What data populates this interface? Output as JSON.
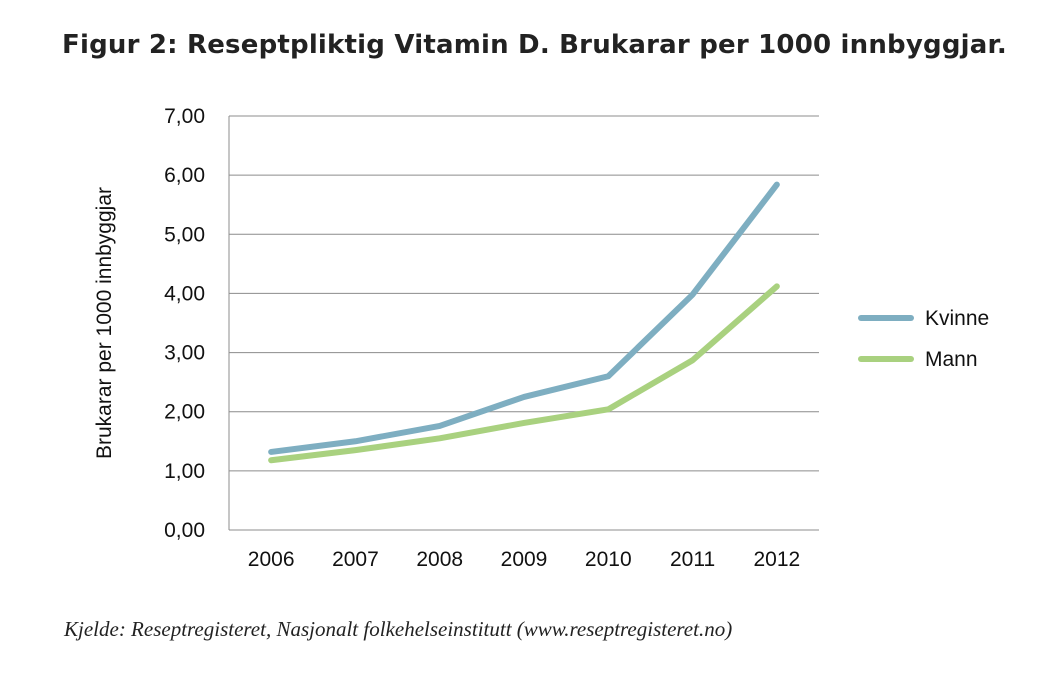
{
  "title": "Figur 2: Reseptpliktig Vitamin D. Brukarar per 1000 innbyggjar.",
  "caption": "Kjelde: Reseptregisteret, Nasjonalt folkehelseinstitutt (www.reseptregisteret.no)",
  "chart_data": {
    "type": "line",
    "title": "Figur 2: Reseptpliktig Vitamin D. Brukarar per 1000 innbyggjar.",
    "xlabel": "",
    "ylabel": "Brukarar per 1000 innbyggjar",
    "categories": [
      "2006",
      "2007",
      "2008",
      "2009",
      "2010",
      "2011",
      "2012"
    ],
    "ylim": [
      0,
      7
    ],
    "yticks": [
      "0,00",
      "1,00",
      "2,00",
      "3,00",
      "4,00",
      "5,00",
      "6,00",
      "7,00"
    ],
    "grid": true,
    "legend_position": "right",
    "series": [
      {
        "name": "Kvinne",
        "color": "#7eaec1",
        "values": [
          1.32,
          1.5,
          1.76,
          2.25,
          2.6,
          3.98,
          5.84
        ]
      },
      {
        "name": "Mann",
        "color": "#a9d17f",
        "values": [
          1.18,
          1.35,
          1.55,
          1.81,
          2.04,
          2.87,
          4.12
        ]
      }
    ]
  }
}
